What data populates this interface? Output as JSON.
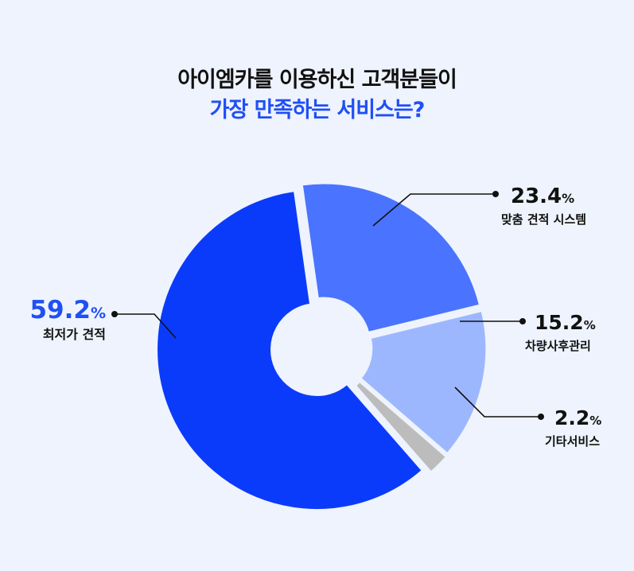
{
  "header": {
    "title_line1": "아이엠카를 이용하신 고객분들이",
    "title_line2": "가장 만족하는 서비스는?"
  },
  "colors": {
    "background": "#eef3fd",
    "title": "#111111",
    "accent": "#1f4ff5",
    "leader_line": "#111111"
  },
  "chart_data": {
    "type": "pie",
    "donut": true,
    "title": "아이엠카를 이용하신 고객분들이 가장 만족하는 서비스는?",
    "categories": [
      "맞춤 견적 시스템",
      "차량사후관리",
      "기타서비스",
      "최저가 견적"
    ],
    "values": [
      23.4,
      15.2,
      2.2,
      59.2
    ],
    "value_labels": [
      "23.4",
      "15.2",
      "2.2",
      "59.2"
    ],
    "unit": "%",
    "colors": [
      "#4a73ff",
      "#9db7ff",
      "#bcbcbc",
      "#0b3bfa"
    ],
    "highlight": "최저가 견적",
    "legend": "none"
  }
}
